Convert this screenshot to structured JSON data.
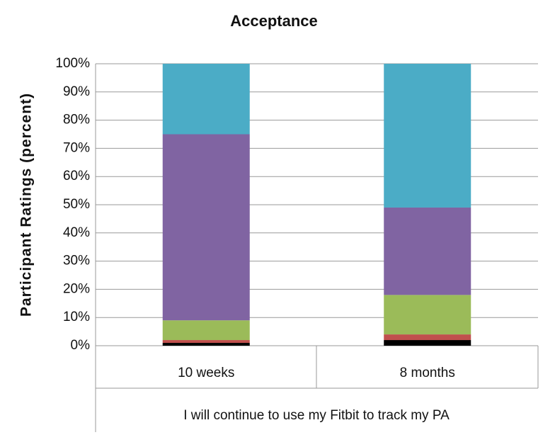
{
  "chart_data": {
    "type": "stacked_bar",
    "title": "Acceptance",
    "y_label": "Participant Ratings (percent)",
    "group_label": "I will continue to use my Fitbit to track my PA",
    "categories": [
      "10 weeks",
      "8 months"
    ],
    "series": [
      {
        "color": "#000000",
        "values": [
          1,
          2
        ]
      },
      {
        "color": "#c0504d",
        "values": [
          1,
          2
        ]
      },
      {
        "color": "#9bbb59",
        "values": [
          7,
          14
        ]
      },
      {
        "color": "#8064a2",
        "values": [
          66,
          31
        ]
      },
      {
        "color": "#4bacc6",
        "values": [
          25,
          51
        ]
      }
    ],
    "ylim": [
      0,
      100
    ],
    "yticks": [
      {
        "value": 0,
        "label": "0%"
      },
      {
        "value": 10,
        "label": "10%"
      },
      {
        "value": 20,
        "label": "20%"
      },
      {
        "value": 30,
        "label": "30%"
      },
      {
        "value": 40,
        "label": "40%"
      },
      {
        "value": 50,
        "label": "50%"
      },
      {
        "value": 60,
        "label": "60%"
      },
      {
        "value": 70,
        "label": "70%"
      },
      {
        "value": 80,
        "label": "80%"
      },
      {
        "value": 90,
        "label": "90%"
      },
      {
        "value": 100,
        "label": "100%"
      }
    ],
    "grid": true
  }
}
